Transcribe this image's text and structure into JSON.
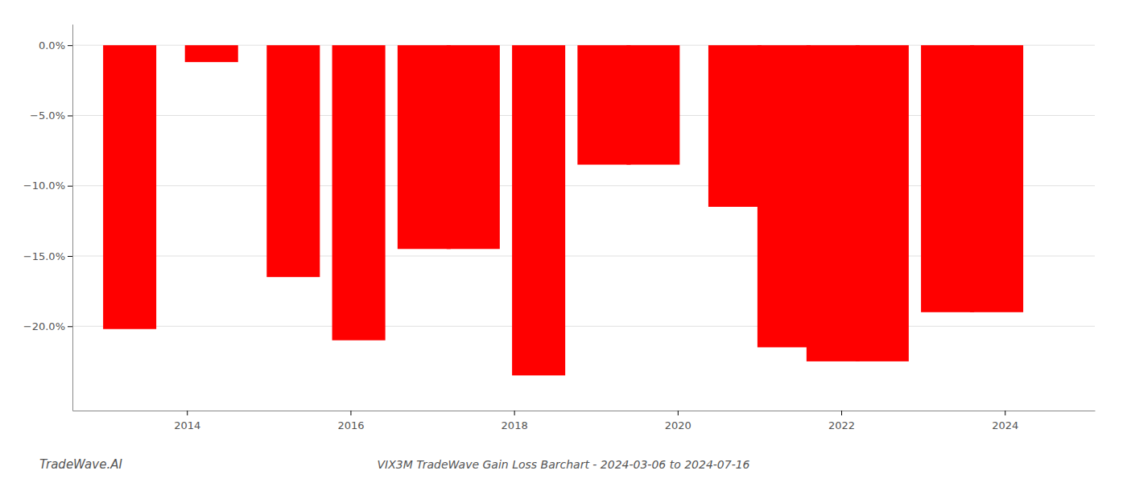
{
  "chart_data": {
    "type": "bar",
    "title": "VIX3M TradeWave Gain Loss Barchart - 2024-03-06 to 2024-07-16",
    "annotations": [
      "TradeWave.AI"
    ],
    "x": [
      2013.3,
      2014.3,
      2015.3,
      2016.1,
      2016.9,
      2017.5,
      2018.3,
      2019.1,
      2019.7,
      2020.7,
      2021.3,
      2021.9,
      2022.5,
      2023.3,
      2023.9
    ],
    "values": [
      -20.2,
      -1.2,
      -16.5,
      -21.0,
      -14.5,
      -14.5,
      -23.5,
      -8.5,
      -8.5,
      -11.5,
      -21.5,
      -22.5,
      -22.5,
      -19.0,
      -19.0
    ],
    "color": "#ff0000",
    "xlim": [
      2012.6,
      2025.1
    ],
    "xticks": [
      2014,
      2016,
      2018,
      2020,
      2022,
      2024
    ],
    "ylim": [
      -26.0,
      1.5
    ],
    "yticks": [
      {
        "value": 0.0,
        "label": "0.0%"
      },
      {
        "value": -5.0,
        "label": "−5.0%"
      },
      {
        "value": -10.0,
        "label": "−10.0%"
      },
      {
        "value": -15.0,
        "label": "−15.0%"
      },
      {
        "value": -20.0,
        "label": "−20.0%"
      }
    ],
    "grid": true
  }
}
